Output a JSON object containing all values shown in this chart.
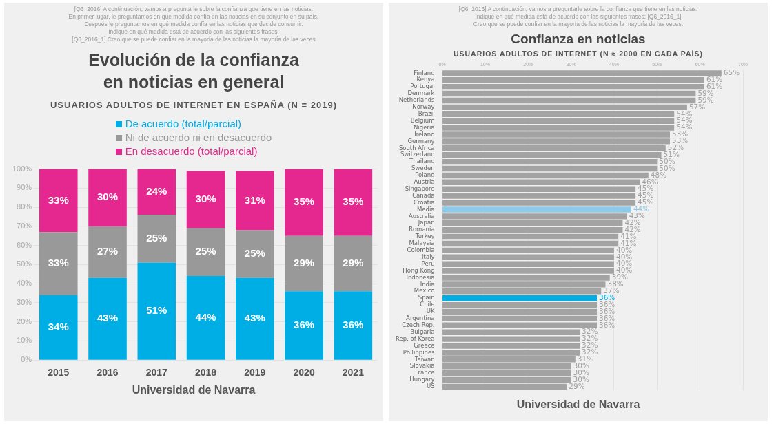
{
  "chart_data": [
    {
      "type": "bar",
      "title": "Evolución de la confianza\nen noticias en general",
      "subtitle": "USUARIOS ADULTOS DE INTERNET EN ESPAÑA (N = 2019)",
      "annotations": [
        "[Q6_2016] A continuación, vamos a preguntarle sobre la confianza que tiene en las noticias.",
        "En primer lugar, le preguntamos en qué medida confía en las noticias en su conjunto en su país.",
        "Después le preguntamos en qué medida confía en las noticias que decide consumir.",
        "Indique en qué medida está de acuerdo con las siguientes frases:",
        "[Q6_2016_1] Creo que se puede confiar en la mayoría de las noticias la mayoría de las veces",
        "Universidad de Navarra"
      ],
      "categories": [
        "2015",
        "2016",
        "2017",
        "2018",
        "2019",
        "2020",
        "2021"
      ],
      "stacked": true,
      "legend": "top",
      "grid": "y",
      "ylim": [
        0,
        100
      ],
      "yticks": [
        {
          "value": 0,
          "label": "0%"
        },
        {
          "value": 10,
          "label": "10%"
        },
        {
          "value": 20,
          "label": "20%"
        },
        {
          "value": 30,
          "label": "30%"
        },
        {
          "value": 40,
          "label": "40%"
        },
        {
          "value": 50,
          "label": "50%"
        },
        {
          "value": 60,
          "label": "60%"
        },
        {
          "value": 70,
          "label": "70%"
        },
        {
          "value": 80,
          "label": "80%"
        },
        {
          "value": 90,
          "label": "90%"
        },
        {
          "value": 100,
          "label": "100%"
        }
      ],
      "series": [
        {
          "name": "De acuerdo (total/parcial)",
          "color": "#00aee6",
          "values": [
            34,
            43,
            51,
            44,
            43,
            36,
            36
          ],
          "value_labels": [
            "34%",
            "43%",
            "51%",
            "44%",
            "43%",
            "36%",
            "36%"
          ]
        },
        {
          "name": "Ni de acuerdo ni en desacuerdo",
          "color": "#999999",
          "values": [
            33,
            27,
            25,
            25,
            25,
            29,
            29
          ],
          "value_labels": [
            "33%",
            "27%",
            "25%",
            "25%",
            "25%",
            "29%",
            "29%"
          ]
        },
        {
          "name": "En desacuerdo (total/parcial)",
          "color": "#e5288f",
          "values": [
            33,
            30,
            24,
            30,
            31,
            35,
            35
          ],
          "value_labels": [
            "33%",
            "30%",
            "24%",
            "30%",
            "31%",
            "35%",
            "35%"
          ]
        }
      ]
    },
    {
      "type": "bar",
      "orientation": "horizontal",
      "title": "Confianza en noticias",
      "subtitle": "USUARIOS ADULTOS DE INTERNET (N ≈ 2000 EN CADA PAÍS)",
      "annotations": [
        "[Q6_2016] A continuación, vamos a preguntarle sobre la confianza que tiene en las noticias.",
        "Indique en qué medida está de acuerdo con las siguientes frases: [Q6_2016_1]",
        "Creo que se puede confiar en la mayoría de las noticias la mayoría de las veces.",
        "Universidad de Navarra"
      ],
      "grid": "x",
      "xlim": [
        0,
        70
      ],
      "xticks": [
        {
          "value": 0,
          "label": "0%"
        },
        {
          "value": 10,
          "label": "10%"
        },
        {
          "value": 20,
          "label": "20%"
        },
        {
          "value": 30,
          "label": "30%"
        },
        {
          "value": 40,
          "label": "40%"
        },
        {
          "value": 50,
          "label": "50%"
        },
        {
          "value": 60,
          "label": "60%"
        },
        {
          "value": 70,
          "label": "70%"
        }
      ],
      "categories": [
        "Finland",
        "Kenya",
        "Portugal",
        "Denmark",
        "Netherlands",
        "Norway",
        "Brazil",
        "Belgium",
        "Nigeria",
        "Ireland",
        "Germany",
        "South Africa",
        "Switzerland",
        "Thailand",
        "Sweden",
        "Poland",
        "Austria",
        "Singapore",
        "Canada",
        "Croatia",
        "Media",
        "Australia",
        "Japan",
        "Romania",
        "Turkey",
        "Malaysia",
        "Colombia",
        "Italy",
        "Peru",
        "Hong Kong",
        "Indonesia",
        "India",
        "Mexico",
        "Spain",
        "Chile",
        "UK",
        "Argentina",
        "Czech Rep.",
        "Bulgaria",
        "Rep. of Korea",
        "Greece",
        "Philippines",
        "Taiwan",
        "Slovakia",
        "France",
        "Hungary",
        "US"
      ],
      "values": [
        65,
        61,
        61,
        59,
        59,
        57,
        54,
        54,
        54,
        53,
        53,
        52,
        51,
        50,
        50,
        48,
        46,
        45,
        45,
        45,
        44,
        43,
        42,
        42,
        41,
        41,
        40,
        40,
        40,
        40,
        39,
        38,
        37,
        36,
        36,
        36,
        36,
        36,
        32,
        32,
        32,
        32,
        31,
        30,
        30,
        30,
        29
      ],
      "value_labels": [
        "65%",
        "61%",
        "61%",
        "59%",
        "59%",
        "57%",
        "54%",
        "54%",
        "54%",
        "53%",
        "53%",
        "52%",
        "51%",
        "50%",
        "50%",
        "48%",
        "46%",
        "45%",
        "45%",
        "45%",
        "44%",
        "43%",
        "42%",
        "42%",
        "41%",
        "41%",
        "40%",
        "40%",
        "40%",
        "40%",
        "39%",
        "38%",
        "37%",
        "36%",
        "36%",
        "36%",
        "36%",
        "36%",
        "32%",
        "32%",
        "32%",
        "32%",
        "31%",
        "30%",
        "30%",
        "30%",
        "29%"
      ],
      "colors": [
        "#a3a3a3",
        "#a3a3a3",
        "#a3a3a3",
        "#a3a3a3",
        "#a3a3a3",
        "#a3a3a3",
        "#a3a3a3",
        "#a3a3a3",
        "#a3a3a3",
        "#a3a3a3",
        "#a3a3a3",
        "#a3a3a3",
        "#a3a3a3",
        "#a3a3a3",
        "#a3a3a3",
        "#a3a3a3",
        "#a3a3a3",
        "#a3a3a3",
        "#a3a3a3",
        "#a3a3a3",
        "#8ecbeb",
        "#a3a3a3",
        "#a3a3a3",
        "#a3a3a3",
        "#a3a3a3",
        "#a3a3a3",
        "#a3a3a3",
        "#a3a3a3",
        "#a3a3a3",
        "#a3a3a3",
        "#a3a3a3",
        "#a3a3a3",
        "#a3a3a3",
        "#00aee6",
        "#a3a3a3",
        "#a3a3a3",
        "#a3a3a3",
        "#a3a3a3",
        "#a3a3a3",
        "#a3a3a3",
        "#a3a3a3",
        "#a3a3a3",
        "#a3a3a3",
        "#a3a3a3",
        "#a3a3a3",
        "#a3a3a3",
        "#a3a3a3"
      ]
    }
  ]
}
